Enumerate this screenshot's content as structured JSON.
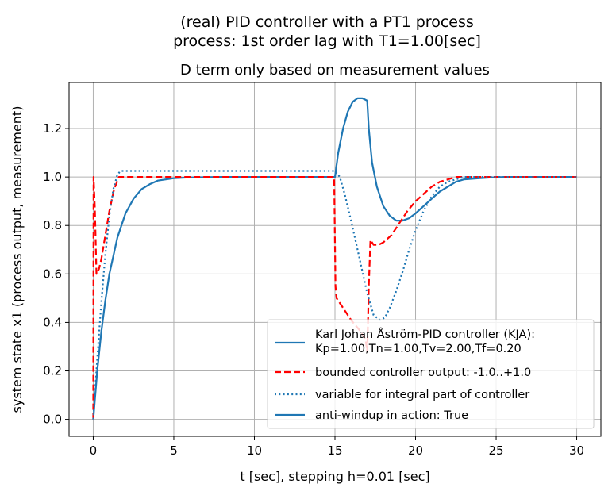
{
  "chart_data": {
    "type": "line",
    "suptitle_line1": "(real) PID controller with a PT1 process",
    "suptitle_line2": "process: 1st order lag with T1=1.00[sec]",
    "title": "D term only based on measurement values",
    "xlabel": "t [sec], stepping h=0.01 [sec]",
    "ylabel": "system state x1 (process output, measurement)",
    "xlim": [
      -1.5,
      31.5
    ],
    "ylim": [
      -0.07,
      1.39
    ],
    "xticks": [
      0,
      5,
      10,
      15,
      20,
      25,
      30
    ],
    "yticks": [
      0.0,
      0.2,
      0.4,
      0.6,
      0.8,
      1.0,
      1.2
    ],
    "xtick_labels": [
      "0",
      "5",
      "10",
      "15",
      "20",
      "25",
      "30"
    ],
    "ytick_labels": [
      "0.0",
      "0.2",
      "0.4",
      "0.6",
      "0.8",
      "1.0",
      "1.2"
    ],
    "grid": true,
    "legend_position": "lower-right",
    "series": [
      {
        "name": "Karl Johan Åström-PID controller (KJA):\nKp=1.00,Tn=1.00,Tv=2.00,Tf=0.20",
        "color": "#1f77b4",
        "style": "solid",
        "x": [
          0,
          0.25,
          0.5,
          0.75,
          1,
          1.5,
          2,
          2.5,
          3,
          3.5,
          4,
          5,
          6,
          7,
          8,
          10,
          12,
          14,
          15,
          15.2,
          15.5,
          15.8,
          16.1,
          16.4,
          16.7,
          17,
          17.1,
          17.3,
          17.6,
          18,
          18.4,
          18.8,
          19.2,
          19.6,
          20,
          20.5,
          21,
          21.5,
          22,
          22.5,
          23,
          24,
          25,
          26,
          28,
          30
        ],
        "y": [
          0,
          0.2,
          0.36,
          0.49,
          0.6,
          0.75,
          0.85,
          0.91,
          0.95,
          0.97,
          0.985,
          0.995,
          0.998,
          0.999,
          1.0,
          1.0,
          1.0,
          1.0,
          1.0,
          1.1,
          1.2,
          1.27,
          1.31,
          1.325,
          1.325,
          1.315,
          1.2,
          1.06,
          0.96,
          0.88,
          0.84,
          0.82,
          0.82,
          0.83,
          0.85,
          0.88,
          0.91,
          0.94,
          0.96,
          0.98,
          0.99,
          0.995,
          0.999,
          1.0,
          1.0,
          1.0
        ]
      },
      {
        "name": "bounded controller output: -1.0..+1.0",
        "color": "#ff0000",
        "style": "dashed",
        "x": [
          0,
          0.02,
          0.1,
          0.2,
          0.35,
          0.5,
          0.7,
          1,
          1.3,
          1.6,
          2,
          5,
          10,
          14.95,
          15.03,
          15.1,
          15.3,
          15.6,
          16,
          16.5,
          16.9,
          17.0,
          17.05,
          17.1,
          17.2,
          17.4,
          17.7,
          18,
          18.5,
          19,
          19.5,
          20,
          20.5,
          21,
          21.5,
          22,
          22.5,
          23,
          25,
          30
        ],
        "y": [
          0,
          1.0,
          0.87,
          0.6,
          0.62,
          0.66,
          0.74,
          0.86,
          0.95,
          1.0,
          1.0,
          1.0,
          1.0,
          1.0,
          0.55,
          0.5,
          0.48,
          0.45,
          0.41,
          0.37,
          0.33,
          0.28,
          0.4,
          0.55,
          0.74,
          0.72,
          0.72,
          0.73,
          0.76,
          0.81,
          0.86,
          0.9,
          0.93,
          0.96,
          0.98,
          0.99,
          1.0,
          1.0,
          1.0,
          1.0
        ]
      },
      {
        "name": "variable for integral part of controller",
        "color": "#1f77b4",
        "style": "dotted",
        "x": [
          0,
          0.25,
          0.5,
          0.75,
          1,
          1.25,
          1.5,
          1.7,
          2,
          5,
          10,
          15,
          15.3,
          15.6,
          16,
          16.5,
          17,
          17.4,
          17.8,
          18.1,
          18.4,
          18.8,
          19.2,
          19.6,
          20,
          20.5,
          21,
          21.5,
          22,
          22.5,
          23,
          24,
          25,
          26,
          30
        ],
        "y": [
          0,
          0.25,
          0.48,
          0.68,
          0.84,
          0.95,
          1.01,
          1.025,
          1.025,
          1.025,
          1.025,
          1.025,
          1.0,
          0.93,
          0.82,
          0.67,
          0.52,
          0.43,
          0.41,
          0.42,
          0.46,
          0.53,
          0.61,
          0.7,
          0.78,
          0.86,
          0.92,
          0.96,
          0.98,
          0.99,
          1.0,
          1.0,
          1.0,
          1.0,
          1.0
        ]
      },
      {
        "name": "anti-windup in action: True",
        "color": "#1f77b4",
        "style": "solid",
        "x": [],
        "y": []
      }
    ]
  }
}
